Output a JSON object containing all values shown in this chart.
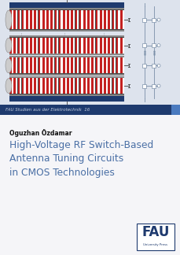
{
  "bg_color": "#dde3ed",
  "white_bg": "#ffffff",
  "title_text": "High-Voltage RF Switch-Based\nAntenna Tuning Circuits\nin CMOS Technologies",
  "author_text": "Oguzhan Özdamar",
  "series_text": "FAU Studien aus der Elektrotechnik  16",
  "title_color": "#4a6fa5",
  "author_color": "#111111",
  "series_bg": "#1e3a6e",
  "series_text_color": "#c5cfe0",
  "banner_blue_dark": "#1e3a6e",
  "banner_blue_mid": "#2e5a9e",
  "cell_red": "#c42020",
  "cell_white": "#ffffff",
  "cell_dark": "#444444",
  "fau_box_color": "#1e3a6e",
  "accent_strip_color": "#4a7abf",
  "schematic_color": "#7a8fa8",
  "diagram_bg": "#dde3ed",
  "content_area_color": "#f5f5f8"
}
